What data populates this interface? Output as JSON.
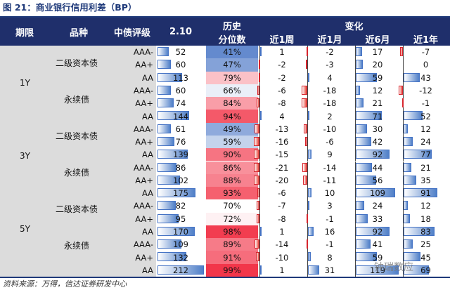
{
  "title": "图 21：商业银行信用利差（BP）",
  "header": {
    "col_period": "期限",
    "col_type": "品种",
    "col_rating": "中债评级",
    "col_value": "2.10",
    "col_pct_line1": "历史",
    "col_pct_line2": "分位数",
    "col_change": "变化",
    "col_w1": "近1周",
    "col_m1": "近1月",
    "col_m6": "近6月",
    "col_y1": "近1年"
  },
  "groups": [
    {
      "period": "1Y",
      "types": [
        "二级资本债",
        "永续债"
      ]
    },
    {
      "period": "3Y",
      "types": [
        "二级资本债",
        "永续债"
      ]
    },
    {
      "period": "5Y",
      "types": [
        "二级资本债",
        "永续债"
      ]
    }
  ],
  "rows": [
    {
      "rating": "AAA-",
      "value": 52,
      "pct": "41%",
      "pctv": 41,
      "w1": 1,
      "m1": -2,
      "m6": 17,
      "y1": -7
    },
    {
      "rating": "AA+",
      "value": 60,
      "pct": "47%",
      "pctv": 47,
      "w1": -2,
      "m1": -3,
      "m6": 20,
      "y1": 0
    },
    {
      "rating": "AA",
      "value": 113,
      "pct": "79%",
      "pctv": 79,
      "w1": -2,
      "m1": 4,
      "m6": 59,
      "y1": 43
    },
    {
      "rating": "AAA-",
      "value": 60,
      "pct": "66%",
      "pctv": 66,
      "w1": -6,
      "m1": -18,
      "m6": 12,
      "y1": -12
    },
    {
      "rating": "AA+",
      "value": 74,
      "pct": "84%",
      "pctv": 84,
      "w1": -8,
      "m1": -18,
      "m6": 21,
      "y1": -1
    },
    {
      "rating": "AA",
      "value": 144,
      "pct": "94%",
      "pctv": 94,
      "w1": 4,
      "m1": 2,
      "m6": 71,
      "y1": 52
    },
    {
      "rating": "AAA-",
      "value": 61,
      "pct": "49%",
      "pctv": 49,
      "w1": -13,
      "m1": -10,
      "m6": 30,
      "y1": 12
    },
    {
      "rating": "AA+",
      "value": 76,
      "pct": "59%",
      "pctv": 59,
      "w1": -16,
      "m1": -6,
      "m6": 42,
      "y1": 24
    },
    {
      "rating": "AA",
      "value": 139,
      "pct": "90%",
      "pctv": 90,
      "w1": -15,
      "m1": 9,
      "m6": 92,
      "y1": 77
    },
    {
      "rating": "AAA-",
      "value": 86,
      "pct": "86%",
      "pctv": 86,
      "w1": -21,
      "m1": -14,
      "m6": 44,
      "y1": 21
    },
    {
      "rating": "AA+",
      "value": 102,
      "pct": "88%",
      "pctv": 88,
      "w1": -20,
      "m1": -11,
      "m6": 56,
      "y1": 35
    },
    {
      "rating": "AA",
      "value": 175,
      "pct": "93%",
      "pctv": 93,
      "w1": -6,
      "m1": 10,
      "m6": 109,
      "y1": 91
    },
    {
      "rating": "AAA-",
      "value": 82,
      "pct": "70%",
      "pctv": 70,
      "w1": -7,
      "m1": 3,
      "m6": 24,
      "y1": 12
    },
    {
      "rating": "AA+",
      "value": 95,
      "pct": "72%",
      "pctv": 72,
      "w1": -8,
      "m1": -1,
      "m6": 33,
      "y1": 18
    },
    {
      "rating": "AA",
      "value": 170,
      "pct": "98%",
      "pctv": 98,
      "w1": 1,
      "m1": 16,
      "m6": 92,
      "y1": 83
    },
    {
      "rating": "AAA-",
      "value": 109,
      "pct": "89%",
      "pctv": 89,
      "w1": -14,
      "m1": -1,
      "m6": 41,
      "y1": 25
    },
    {
      "rating": "AA+",
      "value": 132,
      "pct": "91%",
      "pctv": 91,
      "w1": -10,
      "m1": 8,
      "m6": 59,
      "y1": 45
    },
    {
      "rating": "AA",
      "value": 212,
      "pct": "99%",
      "pctv": 99,
      "w1": 1,
      "m1": 31,
      "m6": 119,
      "y1": 69
    }
  ],
  "source": "资料来源：万得，信达证券研发中心",
  "watermark": "钟瑞数应",
  "colors": {
    "header_bg": "#1f2f6b",
    "pos_bar": "#4f7fc8",
    "neg_bar": "#e8443a",
    "low_pct": "#4472c4",
    "high_pct": "#f2364a"
  }
}
